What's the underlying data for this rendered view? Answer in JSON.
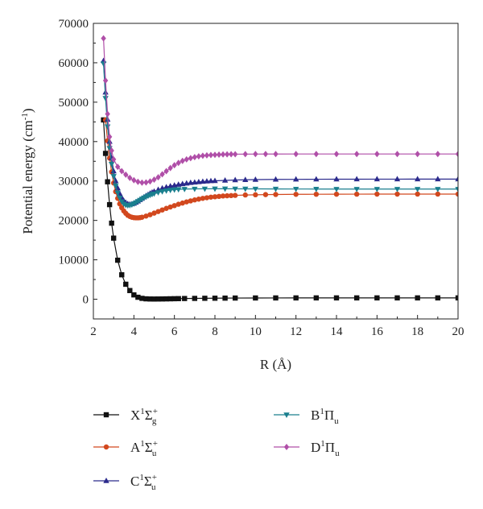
{
  "chart_data": {
    "type": "line",
    "xlabel": "R (Å)",
    "ylabel": "Potential energy (cm⁻¹)",
    "ylabel_parts": {
      "main": "Potential energy (cm",
      "sup": "-1",
      "end": ")"
    },
    "xlim": [
      2,
      20
    ],
    "ylim": [
      -5000,
      70000
    ],
    "xticks": [
      2,
      4,
      6,
      8,
      10,
      12,
      14,
      16,
      18,
      20
    ],
    "yticks": [
      0,
      10000,
      20000,
      30000,
      40000,
      50000,
      60000,
      70000
    ],
    "legend_position": "below",
    "series": [
      {
        "name": "X¹Σg⁺",
        "label": {
          "base": "X",
          "sup1": "1",
          "greek": "Σ",
          "sup": "+",
          "sub": "g"
        },
        "color": "#111111",
        "marker": "square",
        "x": [
          2.5,
          2.6,
          2.7,
          2.8,
          2.9,
          3.0,
          3.2,
          3.4,
          3.6,
          3.8,
          4.0,
          4.2,
          4.4,
          4.6,
          4.8,
          5.0,
          5.2,
          5.4,
          5.6,
          5.8,
          6.0,
          6.2,
          6.5,
          7.0,
          7.5,
          8.0,
          8.5,
          9.0,
          10.0,
          11.0,
          12.0,
          13.0,
          14.0,
          15.0,
          16.0,
          17.0,
          18.0,
          19.0,
          20.0
        ],
        "y": [
          45500,
          37000,
          29800,
          24000,
          19300,
          15500,
          9900,
          6200,
          3800,
          2200,
          1100,
          500,
          220,
          100,
          60,
          50,
          60,
          70,
          90,
          110,
          130,
          150,
          180,
          210,
          240,
          260,
          280,
          300,
          320,
          330,
          335,
          340,
          340,
          340,
          340,
          340,
          340,
          340,
          340
        ]
      },
      {
        "name": "A¹Σu⁺",
        "label": {
          "base": "A",
          "sup1": "1",
          "greek": "Σ",
          "sup": "+",
          "sub": "u"
        },
        "color": "#d2481e",
        "marker": "circle",
        "x": [
          2.6,
          2.7,
          2.8,
          2.9,
          3.0,
          3.1,
          3.2,
          3.3,
          3.4,
          3.5,
          3.6,
          3.7,
          3.8,
          3.9,
          4.0,
          4.1,
          4.2,
          4.3,
          4.4,
          4.6,
          4.8,
          5.0,
          5.2,
          5.4,
          5.6,
          5.8,
          6.0,
          6.2,
          6.4,
          6.6,
          6.8,
          7.0,
          7.2,
          7.4,
          7.6,
          7.8,
          8.0,
          8.2,
          8.4,
          8.6,
          8.8,
          9.0,
          9.5,
          10.0,
          10.5,
          11.0,
          12.0,
          13.0,
          14.0,
          15.0,
          16.0,
          17.0,
          18.0,
          19.0,
          20.0
        ],
        "y": [
          45500,
          40200,
          35800,
          32300,
          29500,
          27300,
          25600,
          24200,
          23200,
          22400,
          21800,
          21300,
          21000,
          20800,
          20700,
          20650,
          20650,
          20700,
          20800,
          21100,
          21450,
          21850,
          22250,
          22650,
          23050,
          23400,
          23750,
          24100,
          24400,
          24700,
          24950,
          25200,
          25400,
          25600,
          25750,
          25900,
          26000,
          26100,
          26200,
          26250,
          26300,
          26350,
          26450,
          26500,
          26550,
          26580,
          26620,
          26640,
          26650,
          26660,
          26670,
          26670,
          26680,
          26680,
          26680
        ]
      },
      {
        "name": "C¹Σu⁺",
        "label": {
          "base": "C",
          "sup1": "1",
          "greek": "Σ",
          "sup": "+",
          "sub": "u"
        },
        "color": "#2b2a8c",
        "marker": "triangle-up",
        "x": [
          2.5,
          2.6,
          2.7,
          2.8,
          2.9,
          3.0,
          3.1,
          3.2,
          3.3,
          3.4,
          3.5,
          3.6,
          3.7,
          3.8,
          3.9,
          4.0,
          4.1,
          4.2,
          4.3,
          4.4,
          4.5,
          4.6,
          4.7,
          4.8,
          4.9,
          5.0,
          5.2,
          5.4,
          5.6,
          5.8,
          6.0,
          6.2,
          6.4,
          6.6,
          6.8,
          7.0,
          7.2,
          7.4,
          7.6,
          7.8,
          8.0,
          8.5,
          9.0,
          9.5,
          10.0,
          11.0,
          12.0,
          13.0,
          14.0,
          15.0,
          16.0,
          17.0,
          18.0,
          19.0,
          20.0
        ],
        "y": [
          60500,
          52500,
          45600,
          40000,
          35800,
          32500,
          30000,
          28200,
          26800,
          25800,
          25000,
          24500,
          24200,
          24100,
          24150,
          24300,
          24550,
          24850,
          25200,
          25550,
          25900,
          26250,
          26550,
          26850,
          27100,
          27350,
          27800,
          28150,
          28450,
          28700,
          28900,
          29100,
          29250,
          29400,
          29550,
          29650,
          29750,
          29850,
          29930,
          30000,
          30050,
          30150,
          30250,
          30300,
          30350,
          30400,
          30420,
          30440,
          30450,
          30460,
          30470,
          30470,
          30480,
          30480,
          30480
        ]
      },
      {
        "name": "B¹Πu",
        "label": {
          "base": "B",
          "sup1": "1",
          "greek": "Π",
          "sup": "",
          "sub": "u"
        },
        "color": "#1a7f8e",
        "marker": "triangle-down",
        "x": [
          2.5,
          2.6,
          2.7,
          2.8,
          2.9,
          3.0,
          3.1,
          3.2,
          3.3,
          3.4,
          3.5,
          3.6,
          3.7,
          3.8,
          3.9,
          4.0,
          4.1,
          4.2,
          4.3,
          4.4,
          4.5,
          4.6,
          4.7,
          4.8,
          4.9,
          5.0,
          5.2,
          5.4,
          5.6,
          5.8,
          6.0,
          6.2,
          6.5,
          7.0,
          7.5,
          8.0,
          8.5,
          9.0,
          9.5,
          10.0,
          11.0,
          12.0,
          13.0,
          14.0,
          15.0,
          16.0,
          17.0,
          18.0,
          19.0,
          20.0
        ],
        "y": [
          59800,
          51000,
          43800,
          38300,
          34300,
          31200,
          28800,
          27000,
          25700,
          24800,
          24200,
          23900,
          23800,
          23850,
          24000,
          24250,
          24550,
          24850,
          25150,
          25450,
          25750,
          26000,
          26250,
          26450,
          26650,
          26800,
          27100,
          27350,
          27550,
          27700,
          27800,
          27880,
          27950,
          28000,
          28020,
          28030,
          28030,
          28020,
          28010,
          28000,
          27980,
          27970,
          27960,
          27950,
          27950,
          27950,
          27950,
          27950,
          27950,
          27950
        ]
      },
      {
        "name": "D¹Πu",
        "label": {
          "base": "D",
          "sup1": "1",
          "greek": "Π",
          "sup": "",
          "sub": "u"
        },
        "color": "#b04fa8",
        "marker": "diamond",
        "x": [
          2.5,
          2.6,
          2.7,
          2.8,
          2.9,
          3.0,
          3.2,
          3.4,
          3.6,
          3.8,
          4.0,
          4.2,
          4.4,
          4.6,
          4.8,
          5.0,
          5.2,
          5.4,
          5.6,
          5.8,
          6.0,
          6.2,
          6.4,
          6.6,
          6.8,
          7.0,
          7.2,
          7.4,
          7.6,
          7.8,
          8.0,
          8.2,
          8.4,
          8.6,
          8.8,
          9.0,
          9.5,
          10.0,
          10.5,
          11.0,
          12.0,
          13.0,
          14.0,
          15.0,
          16.0,
          17.0,
          18.0,
          19.0,
          20.0
        ],
        "y": [
          66200,
          55500,
          47000,
          41200,
          37700,
          35500,
          33600,
          32500,
          31600,
          30800,
          30200,
          29800,
          29600,
          29650,
          29900,
          30350,
          30950,
          31700,
          32500,
          33300,
          34000,
          34600,
          35100,
          35500,
          35800,
          36050,
          36250,
          36400,
          36500,
          36580,
          36650,
          36700,
          36740,
          36770,
          36790,
          36800,
          36820,
          36830,
          36840,
          36840,
          36850,
          36850,
          36850,
          36850,
          36850,
          36850,
          36850,
          36850,
          36850
        ]
      }
    ]
  }
}
